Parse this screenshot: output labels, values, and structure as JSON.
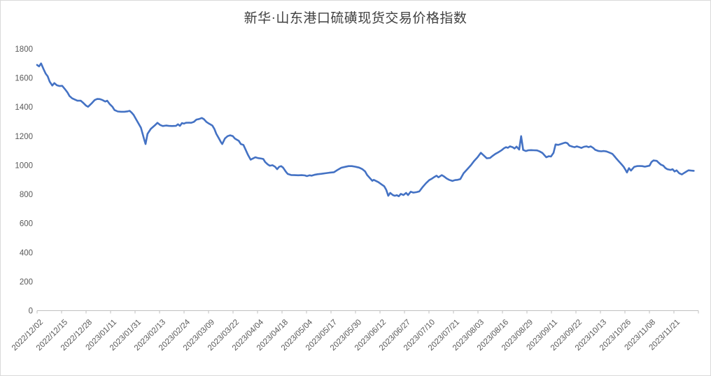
{
  "chart": {
    "colors": {
      "line": "#4472C4",
      "axis": "#BFBFBF",
      "tick_label": "#595959",
      "title": "#404040",
      "frame_border": "#D9D9D9",
      "background": "#FFFFFF"
    }
  },
  "chart_data": {
    "type": "line",
    "title": "新华·山东港口硫磺现货交易价格指数",
    "xlabel": "",
    "ylabel": "",
    "ylim": [
      0,
      1800
    ],
    "y_ticks": [
      0,
      200,
      400,
      600,
      800,
      1000,
      1200,
      1400,
      1600,
      1800
    ],
    "grid": false,
    "legend": false,
    "x_tick_labels": [
      "2022/12/02",
      "2022/12/15",
      "2022/12/28",
      "2023/01/11",
      "2023/01/31",
      "2023/02/13",
      "2023/02/24",
      "2023/03/09",
      "2023/03/22",
      "2023/04/04",
      "2023/04/18",
      "2023/05/04",
      "2023/05/17",
      "2023/05/30",
      "2023/06/12",
      "2023/06/27",
      "2023/07/10",
      "2023/07/21",
      "2023/08/03",
      "2023/08/16",
      "2023/08/29",
      "2023/09/11",
      "2023/09/22",
      "2023/10/13",
      "2023/10/26",
      "2023/11/08",
      "2023/11/21"
    ],
    "series": [
      {
        "points": [
          [
            0.0,
            1690
          ],
          [
            0.003,
            1680
          ],
          [
            0.006,
            1700
          ],
          [
            0.01,
            1658
          ],
          [
            0.013,
            1630
          ],
          [
            0.016,
            1612
          ],
          [
            0.019,
            1575
          ],
          [
            0.023,
            1548
          ],
          [
            0.026,
            1565
          ],
          [
            0.03,
            1550
          ],
          [
            0.034,
            1545
          ],
          [
            0.038,
            1546
          ],
          [
            0.042,
            1524
          ],
          [
            0.046,
            1500
          ],
          [
            0.049,
            1476
          ],
          [
            0.053,
            1460
          ],
          [
            0.057,
            1452
          ],
          [
            0.061,
            1444
          ],
          [
            0.066,
            1444
          ],
          [
            0.07,
            1428
          ],
          [
            0.074,
            1410
          ],
          [
            0.077,
            1402
          ],
          [
            0.083,
            1428
          ],
          [
            0.087,
            1448
          ],
          [
            0.091,
            1456
          ],
          [
            0.095,
            1455
          ],
          [
            0.099,
            1448
          ],
          [
            0.103,
            1438
          ],
          [
            0.106,
            1444
          ],
          [
            0.11,
            1420
          ],
          [
            0.114,
            1402
          ],
          [
            0.117,
            1380
          ],
          [
            0.122,
            1370
          ],
          [
            0.127,
            1368
          ],
          [
            0.132,
            1368
          ],
          [
            0.137,
            1371
          ],
          [
            0.14,
            1374
          ],
          [
            0.143,
            1362
          ],
          [
            0.146,
            1346
          ],
          [
            0.149,
            1322
          ],
          [
            0.153,
            1290
          ],
          [
            0.157,
            1258
          ],
          [
            0.159,
            1225
          ],
          [
            0.162,
            1176
          ],
          [
            0.164,
            1146
          ],
          [
            0.167,
            1216
          ],
          [
            0.172,
            1250
          ],
          [
            0.178,
            1274
          ],
          [
            0.182,
            1292
          ],
          [
            0.186,
            1277
          ],
          [
            0.19,
            1270
          ],
          [
            0.195,
            1273
          ],
          [
            0.199,
            1271
          ],
          [
            0.204,
            1270
          ],
          [
            0.21,
            1271
          ],
          [
            0.213,
            1282
          ],
          [
            0.216,
            1271
          ],
          [
            0.219,
            1290
          ],
          [
            0.222,
            1286
          ],
          [
            0.225,
            1292
          ],
          [
            0.23,
            1293
          ],
          [
            0.233,
            1292
          ],
          [
            0.237,
            1298
          ],
          [
            0.241,
            1314
          ],
          [
            0.245,
            1318
          ],
          [
            0.249,
            1325
          ],
          [
            0.252,
            1318
          ],
          [
            0.256,
            1298
          ],
          [
            0.26,
            1286
          ],
          [
            0.265,
            1273
          ],
          [
            0.268,
            1250
          ],
          [
            0.271,
            1216
          ],
          [
            0.275,
            1184
          ],
          [
            0.278,
            1159
          ],
          [
            0.28,
            1146
          ],
          [
            0.284,
            1184
          ],
          [
            0.288,
            1200
          ],
          [
            0.292,
            1206
          ],
          [
            0.296,
            1200
          ],
          [
            0.299,
            1184
          ],
          [
            0.305,
            1168
          ],
          [
            0.308,
            1146
          ],
          [
            0.312,
            1140
          ],
          [
            0.315,
            1110
          ],
          [
            0.319,
            1070
          ],
          [
            0.323,
            1038
          ],
          [
            0.326,
            1046
          ],
          [
            0.33,
            1055
          ],
          [
            0.334,
            1049
          ],
          [
            0.339,
            1046
          ],
          [
            0.342,
            1043
          ],
          [
            0.345,
            1022
          ],
          [
            0.349,
            1005
          ],
          [
            0.352,
            997
          ],
          [
            0.356,
            1000
          ],
          [
            0.36,
            989
          ],
          [
            0.363,
            973
          ],
          [
            0.366,
            989
          ],
          [
            0.369,
            994
          ],
          [
            0.372,
            984
          ],
          [
            0.376,
            957
          ],
          [
            0.379,
            940
          ],
          [
            0.384,
            933
          ],
          [
            0.389,
            932
          ],
          [
            0.395,
            931
          ],
          [
            0.4,
            932
          ],
          [
            0.405,
            930
          ],
          [
            0.408,
            925
          ],
          [
            0.412,
            931
          ],
          [
            0.415,
            928
          ],
          [
            0.419,
            934
          ],
          [
            0.424,
            938
          ],
          [
            0.43,
            941
          ],
          [
            0.436,
            945
          ],
          [
            0.442,
            949
          ],
          [
            0.449,
            952
          ],
          [
            0.455,
            970
          ],
          [
            0.46,
            983
          ],
          [
            0.466,
            989
          ],
          [
            0.471,
            994
          ],
          [
            0.476,
            994
          ],
          [
            0.481,
            990
          ],
          [
            0.487,
            984
          ],
          [
            0.492,
            973
          ],
          [
            0.496,
            958
          ],
          [
            0.499,
            933
          ],
          [
            0.504,
            908
          ],
          [
            0.507,
            893
          ],
          [
            0.509,
            900
          ],
          [
            0.512,
            893
          ],
          [
            0.516,
            884
          ],
          [
            0.521,
            868
          ],
          [
            0.525,
            855
          ],
          [
            0.528,
            830
          ],
          [
            0.531,
            790
          ],
          [
            0.534,
            810
          ],
          [
            0.538,
            795
          ],
          [
            0.541,
            790
          ],
          [
            0.544,
            794
          ],
          [
            0.547,
            787
          ],
          [
            0.55,
            803
          ],
          [
            0.554,
            795
          ],
          [
            0.558,
            810
          ],
          [
            0.561,
            795
          ],
          [
            0.565,
            818
          ],
          [
            0.569,
            812
          ],
          [
            0.574,
            815
          ],
          [
            0.578,
            820
          ],
          [
            0.583,
            850
          ],
          [
            0.588,
            876
          ],
          [
            0.593,
            898
          ],
          [
            0.597,
            908
          ],
          [
            0.601,
            920
          ],
          [
            0.604,
            928
          ],
          [
            0.607,
            917
          ],
          [
            0.612,
            932
          ],
          [
            0.615,
            924
          ],
          [
            0.619,
            910
          ],
          [
            0.623,
            900
          ],
          [
            0.628,
            892
          ],
          [
            0.632,
            898
          ],
          [
            0.636,
            900
          ],
          [
            0.64,
            905
          ],
          [
            0.645,
            945
          ],
          [
            0.651,
            975
          ],
          [
            0.656,
            1000
          ],
          [
            0.661,
            1030
          ],
          [
            0.666,
            1055
          ],
          [
            0.671,
            1086
          ],
          [
            0.676,
            1065
          ],
          [
            0.68,
            1048
          ],
          [
            0.685,
            1050
          ],
          [
            0.689,
            1065
          ],
          [
            0.693,
            1078
          ],
          [
            0.697,
            1088
          ],
          [
            0.702,
            1102
          ],
          [
            0.706,
            1117
          ],
          [
            0.709,
            1124
          ],
          [
            0.712,
            1120
          ],
          [
            0.715,
            1130
          ],
          [
            0.719,
            1124
          ],
          [
            0.722,
            1115
          ],
          [
            0.725,
            1128
          ],
          [
            0.729,
            1108
          ],
          [
            0.732,
            1200
          ],
          [
            0.735,
            1105
          ],
          [
            0.739,
            1098
          ],
          [
            0.743,
            1103
          ],
          [
            0.747,
            1104
          ],
          [
            0.751,
            1103
          ],
          [
            0.756,
            1102
          ],
          [
            0.76,
            1095
          ],
          [
            0.764,
            1085
          ],
          [
            0.767,
            1070
          ],
          [
            0.77,
            1055
          ],
          [
            0.774,
            1062
          ],
          [
            0.777,
            1060
          ],
          [
            0.781,
            1086
          ],
          [
            0.784,
            1143
          ],
          [
            0.788,
            1140
          ],
          [
            0.792,
            1146
          ],
          [
            0.796,
            1152
          ],
          [
            0.799,
            1156
          ],
          [
            0.802,
            1151
          ],
          [
            0.805,
            1135
          ],
          [
            0.81,
            1127
          ],
          [
            0.813,
            1124
          ],
          [
            0.816,
            1130
          ],
          [
            0.82,
            1124
          ],
          [
            0.823,
            1119
          ],
          [
            0.827,
            1127
          ],
          [
            0.831,
            1130
          ],
          [
            0.834,
            1124
          ],
          [
            0.837,
            1130
          ],
          [
            0.841,
            1119
          ],
          [
            0.844,
            1106
          ],
          [
            0.849,
            1098
          ],
          [
            0.853,
            1096
          ],
          [
            0.857,
            1098
          ],
          [
            0.861,
            1095
          ],
          [
            0.866,
            1086
          ],
          [
            0.87,
            1078
          ],
          [
            0.873,
            1062
          ],
          [
            0.876,
            1046
          ],
          [
            0.879,
            1030
          ],
          [
            0.884,
            1005
          ],
          [
            0.887,
            989
          ],
          [
            0.89,
            966
          ],
          [
            0.892,
            950
          ],
          [
            0.895,
            980
          ],
          [
            0.898,
            963
          ],
          [
            0.903,
            989
          ],
          [
            0.907,
            994
          ],
          [
            0.911,
            995
          ],
          [
            0.915,
            994
          ],
          [
            0.919,
            990
          ],
          [
            0.923,
            994
          ],
          [
            0.926,
            997
          ],
          [
            0.929,
            1022
          ],
          [
            0.932,
            1033
          ],
          [
            0.937,
            1030
          ],
          [
            0.94,
            1017
          ],
          [
            0.943,
            1005
          ],
          [
            0.947,
            997
          ],
          [
            0.95,
            981
          ],
          [
            0.953,
            973
          ],
          [
            0.958,
            968
          ],
          [
            0.961,
            973
          ],
          [
            0.964,
            957
          ],
          [
            0.967,
            965
          ],
          [
            0.971,
            945
          ],
          [
            0.975,
            937
          ],
          [
            0.979,
            949
          ],
          [
            0.982,
            957
          ],
          [
            0.985,
            965
          ],
          [
            0.989,
            963
          ],
          [
            0.993,
            962
          ]
        ]
      }
    ]
  }
}
